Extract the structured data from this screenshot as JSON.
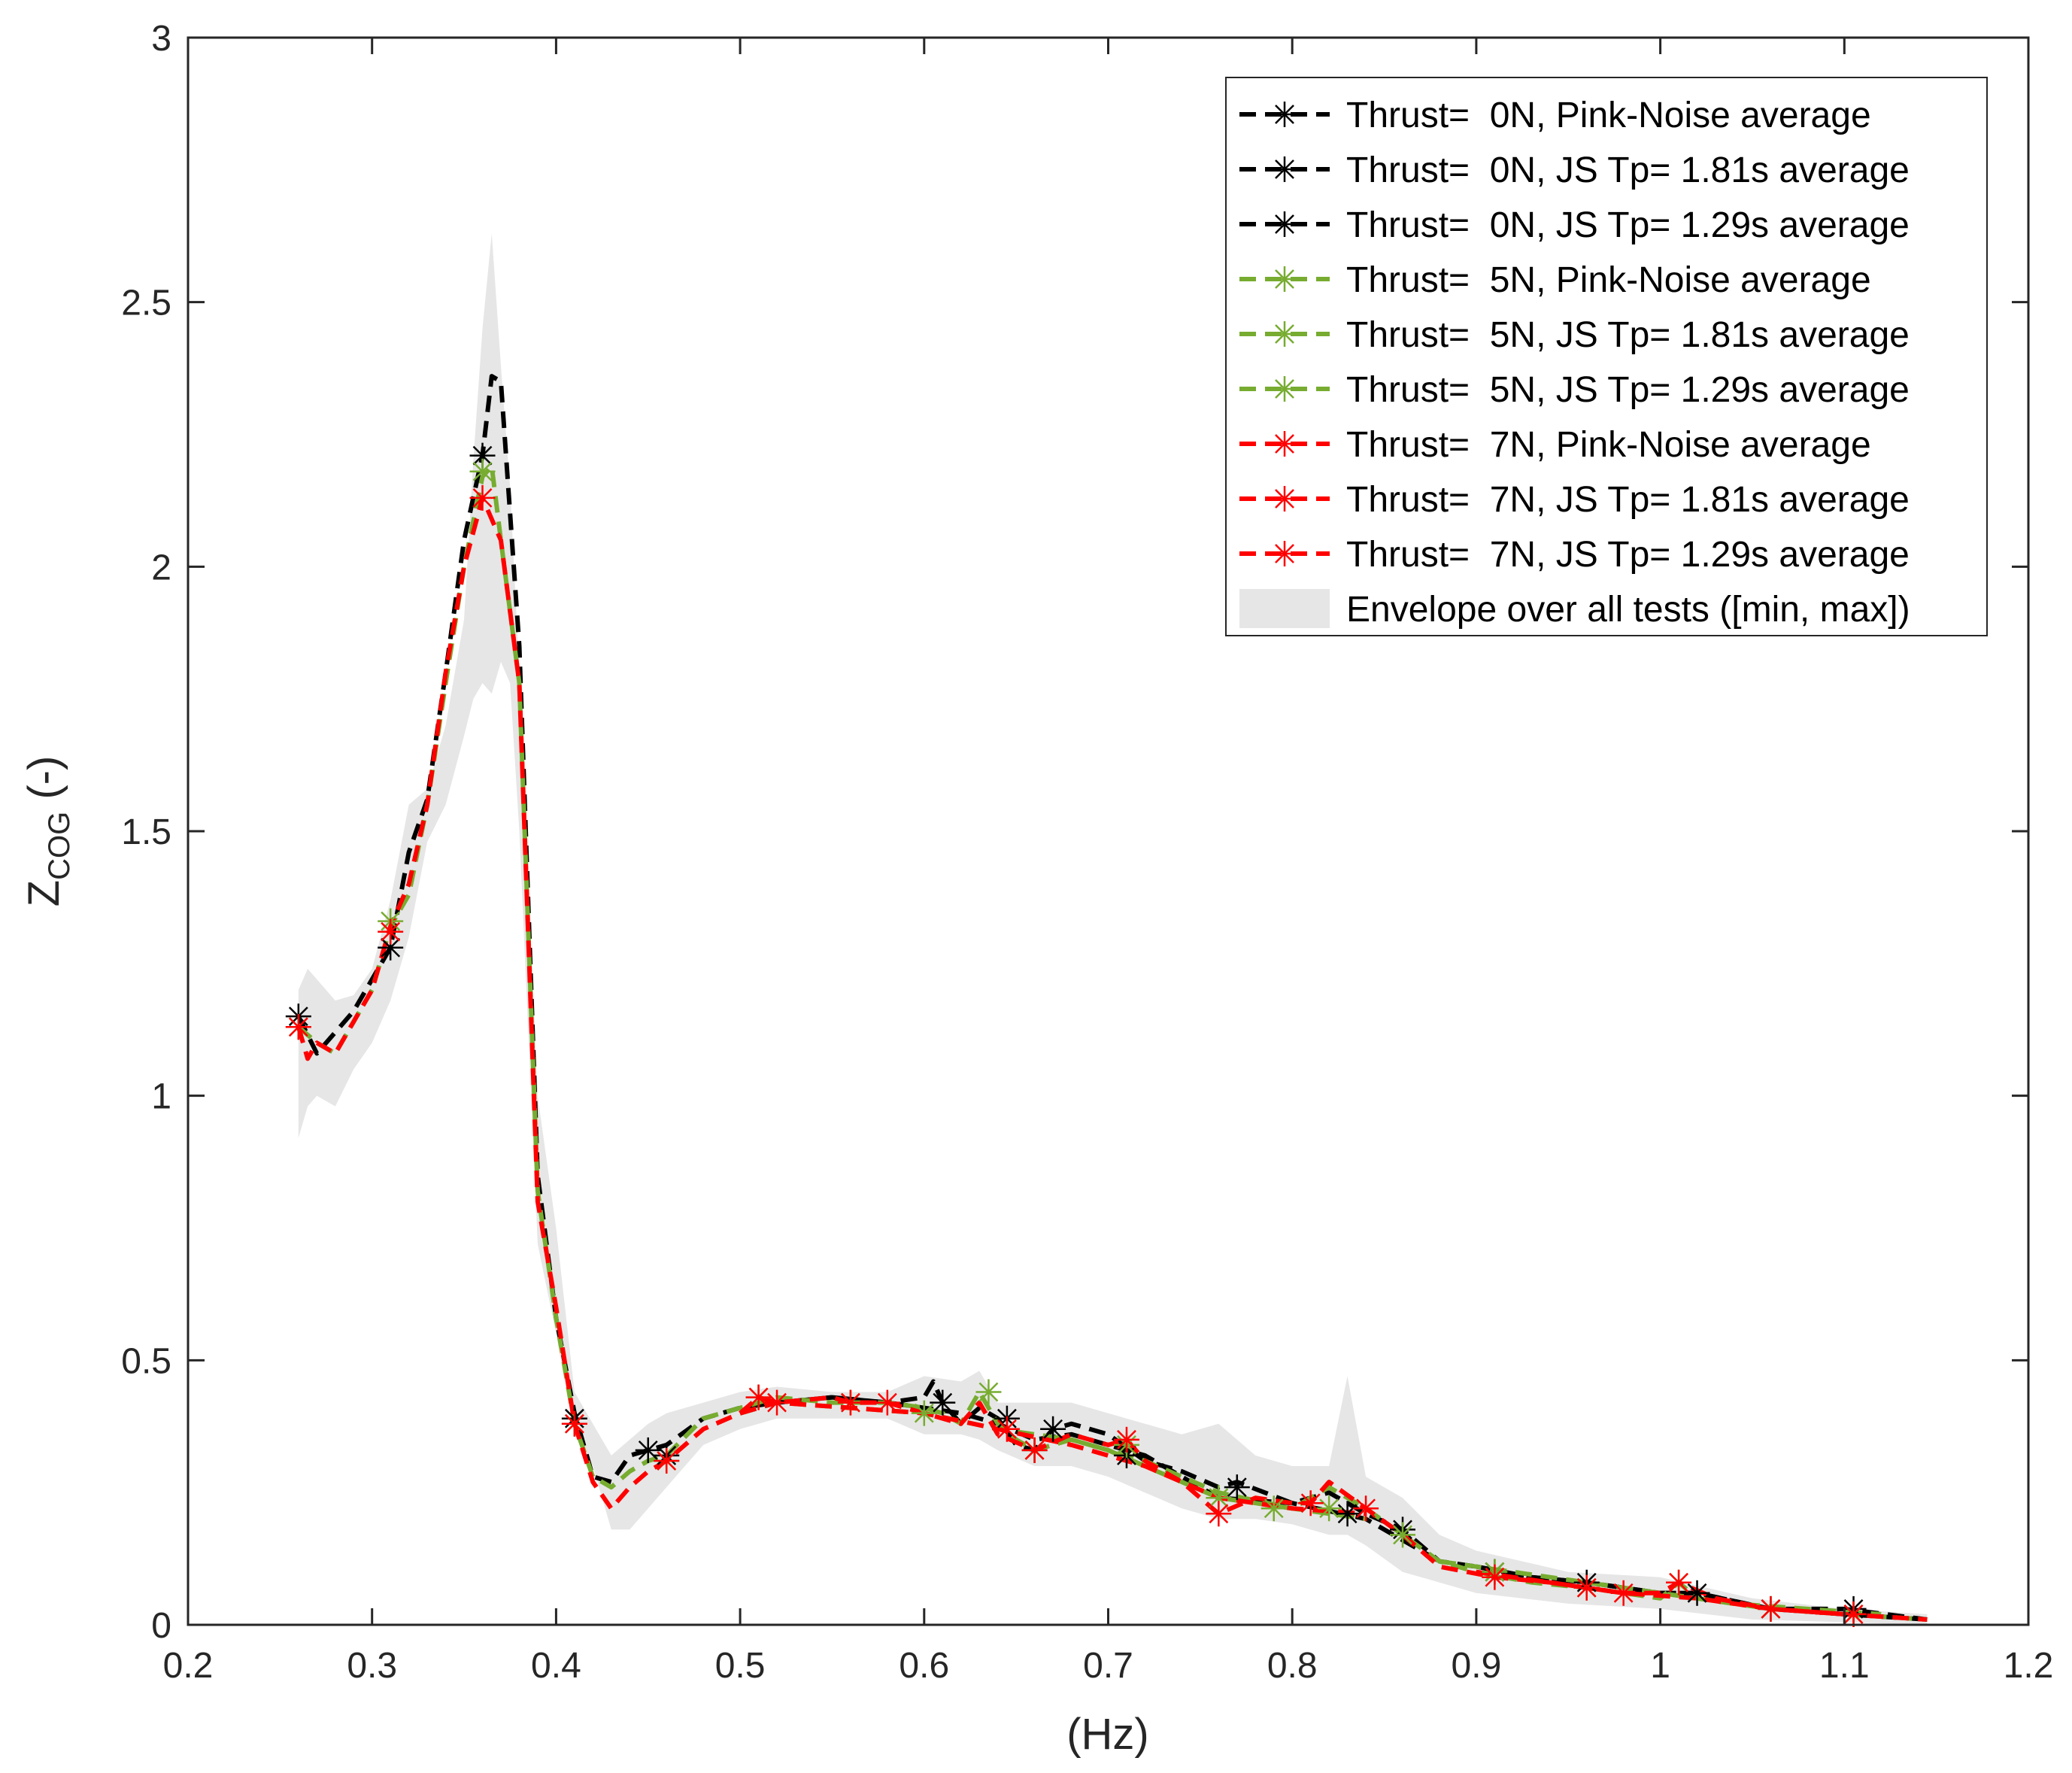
{
  "chart_data": {
    "type": "line",
    "title": "",
    "xlabel": "(Hz)",
    "ylabel": {
      "main": "Z",
      "subscript": "COG",
      "suffix": " (-)"
    },
    "xlim": [
      0.2,
      1.2
    ],
    "ylim": [
      0,
      3
    ],
    "xticks": [
      0.2,
      0.3,
      0.4,
      0.5,
      0.6,
      0.7,
      0.8,
      0.9,
      1,
      1.1,
      1.2
    ],
    "xtick_labels": [
      "0.2",
      "0.3",
      "0.4",
      "0.5",
      "0.6",
      "0.7",
      "0.8",
      "0.9",
      "1",
      "1.1",
      "1.2"
    ],
    "yticks": [
      0,
      0.5,
      1,
      1.5,
      2,
      2.5,
      3
    ],
    "ytick_labels": [
      "0",
      "0.5",
      "1",
      "1.5",
      "2",
      "2.5",
      "3"
    ],
    "legend_position": "top-right",
    "colors": {
      "thrust_0N": "#000000",
      "thrust_5N": "#77ac30",
      "thrust_7N": "#ff0000",
      "envelope": "#e6e6e6"
    },
    "envelope": {
      "name": "Envelope over all tests ([min, max])",
      "x": [
        0.26,
        0.265,
        0.27,
        0.28,
        0.29,
        0.3,
        0.31,
        0.32,
        0.33,
        0.34,
        0.35,
        0.355,
        0.36,
        0.365,
        0.37,
        0.375,
        0.38,
        0.39,
        0.4,
        0.41,
        0.42,
        0.43,
        0.44,
        0.45,
        0.46,
        0.48,
        0.5,
        0.52,
        0.55,
        0.58,
        0.6,
        0.62,
        0.63,
        0.64,
        0.66,
        0.68,
        0.7,
        0.72,
        0.74,
        0.76,
        0.78,
        0.8,
        0.82,
        0.83,
        0.84,
        0.86,
        0.88,
        0.9,
        0.95,
        1.0,
        1.05,
        1.1,
        1.145
      ],
      "upper": [
        1.2,
        1.24,
        1.22,
        1.18,
        1.19,
        1.24,
        1.37,
        1.55,
        1.58,
        1.7,
        1.9,
        2.2,
        2.45,
        2.63,
        2.38,
        2.15,
        1.8,
        1.0,
        0.75,
        0.44,
        0.38,
        0.32,
        0.35,
        0.38,
        0.4,
        0.42,
        0.44,
        0.45,
        0.44,
        0.44,
        0.47,
        0.46,
        0.48,
        0.42,
        0.42,
        0.42,
        0.4,
        0.38,
        0.36,
        0.38,
        0.32,
        0.3,
        0.3,
        0.47,
        0.28,
        0.24,
        0.17,
        0.14,
        0.1,
        0.09,
        0.05,
        0.03,
        0.02
      ],
      "lower": [
        0.92,
        0.98,
        1.0,
        0.98,
        1.05,
        1.1,
        1.18,
        1.3,
        1.48,
        1.55,
        1.68,
        1.75,
        1.78,
        1.76,
        1.82,
        1.78,
        1.5,
        0.72,
        0.55,
        0.36,
        0.3,
        0.18,
        0.18,
        0.22,
        0.26,
        0.34,
        0.37,
        0.39,
        0.39,
        0.39,
        0.36,
        0.36,
        0.35,
        0.33,
        0.3,
        0.3,
        0.28,
        0.25,
        0.22,
        0.2,
        0.2,
        0.19,
        0.17,
        0.17,
        0.15,
        0.1,
        0.08,
        0.06,
        0.04,
        0.03,
        0.01,
        0.005,
        0.0
      ]
    },
    "series": [
      {
        "name": "Thrust=  0N, Pink-Noise average",
        "color": "#000000",
        "dashed": true,
        "x": [
          0.26,
          0.27,
          0.28,
          0.29,
          0.3,
          0.31,
          0.32,
          0.33,
          0.34,
          0.35,
          0.36,
          0.365,
          0.37,
          0.38,
          0.39,
          0.4,
          0.41,
          0.42,
          0.43,
          0.44,
          0.45,
          0.46,
          0.48,
          0.5,
          0.52,
          0.55,
          0.58,
          0.6,
          0.605,
          0.61,
          0.62,
          0.63,
          0.64,
          0.65,
          0.66,
          0.67,
          0.68,
          0.7,
          0.72,
          0.74,
          0.76,
          0.77,
          0.8,
          0.82,
          0.84,
          0.86,
          0.88,
          0.9,
          0.93,
          0.96,
          1.0,
          1.02,
          1.06,
          1.1,
          1.145
        ],
        "y": [
          1.15,
          1.08,
          1.12,
          1.16,
          1.22,
          1.28,
          1.46,
          1.56,
          1.8,
          2.05,
          2.21,
          2.36,
          2.35,
          1.85,
          0.85,
          0.58,
          0.4,
          0.28,
          0.27,
          0.32,
          0.33,
          0.34,
          0.39,
          0.41,
          0.42,
          0.43,
          0.42,
          0.43,
          0.46,
          0.42,
          0.38,
          0.41,
          0.39,
          0.34,
          0.33,
          0.37,
          0.38,
          0.36,
          0.31,
          0.29,
          0.26,
          0.27,
          0.23,
          0.25,
          0.21,
          0.18,
          0.12,
          0.11,
          0.09,
          0.08,
          0.06,
          0.06,
          0.03,
          0.03,
          0.01
        ]
      },
      {
        "name": "Thrust=  0N, JS Tp= 1.81s average",
        "color": "#000000",
        "dashed": true,
        "x": [
          0.5,
          0.52,
          0.55,
          0.58,
          0.6,
          0.62,
          0.64,
          0.66,
          0.68,
          0.7,
          0.72,
          0.74,
          0.76,
          0.8,
          0.84,
          0.88
        ],
        "y": [
          0.4,
          0.42,
          0.43,
          0.42,
          0.41,
          0.4,
          0.38,
          0.35,
          0.36,
          0.34,
          0.32,
          0.28,
          0.24,
          0.23,
          0.2,
          0.12
        ]
      },
      {
        "name": "Thrust=  0N, JS Tp= 1.29s average",
        "color": "#000000",
        "dashed": true,
        "x": [
          0.9,
          0.93,
          0.96,
          1.0,
          1.02,
          1.06,
          1.1,
          1.145
        ],
        "y": [
          0.11,
          0.09,
          0.08,
          0.06,
          0.06,
          0.03,
          0.02,
          0.01
        ]
      },
      {
        "name": "Thrust=  5N, Pink-Noise average",
        "color": "#77ac30",
        "dashed": true,
        "x": [
          0.26,
          0.27,
          0.28,
          0.29,
          0.3,
          0.31,
          0.32,
          0.33,
          0.34,
          0.35,
          0.36,
          0.365,
          0.37,
          0.38,
          0.39,
          0.4,
          0.41,
          0.42,
          0.43,
          0.44,
          0.45,
          0.46,
          0.48,
          0.5,
          0.52,
          0.55,
          0.58,
          0.6,
          0.61,
          0.62,
          0.63,
          0.64,
          0.65,
          0.66,
          0.68,
          0.7,
          0.72,
          0.74,
          0.76,
          0.78,
          0.8,
          0.82,
          0.84,
          0.86,
          0.88,
          0.9,
          0.93,
          0.96,
          1.0,
          1.01,
          1.02,
          1.06,
          1.1,
          1.145
        ],
        "y": [
          1.13,
          1.1,
          1.08,
          1.14,
          1.2,
          1.32,
          1.38,
          1.55,
          1.78,
          2.0,
          2.17,
          2.19,
          2.05,
          1.78,
          0.82,
          0.58,
          0.38,
          0.28,
          0.26,
          0.29,
          0.31,
          0.32,
          0.39,
          0.41,
          0.43,
          0.42,
          0.42,
          0.41,
          0.4,
          0.38,
          0.44,
          0.38,
          0.35,
          0.33,
          0.35,
          0.33,
          0.3,
          0.27,
          0.24,
          0.23,
          0.22,
          0.26,
          0.22,
          0.17,
          0.12,
          0.1,
          0.08,
          0.07,
          0.05,
          0.08,
          0.05,
          0.03,
          0.02,
          0.01
        ]
      },
      {
        "name": "Thrust=  5N, JS Tp= 1.81s average",
        "color": "#77ac30",
        "dashed": true,
        "x": [
          0.5,
          0.52,
          0.56,
          0.6,
          0.64,
          0.68,
          0.72,
          0.76,
          0.8,
          0.84
        ],
        "y": [
          0.4,
          0.42,
          0.41,
          0.4,
          0.37,
          0.35,
          0.31,
          0.25,
          0.22,
          0.2
        ]
      },
      {
        "name": "Thrust=  5N, JS Tp= 1.29s average",
        "color": "#77ac30",
        "dashed": true,
        "x": [
          0.88,
          0.92,
          0.96,
          1.0,
          1.04,
          1.08,
          1.12
        ],
        "y": [
          0.12,
          0.1,
          0.08,
          0.06,
          0.04,
          0.03,
          0.02
        ]
      },
      {
        "name": "Thrust=  7N, Pink-Noise average",
        "color": "#ff0000",
        "dashed": true,
        "x": [
          0.26,
          0.265,
          0.27,
          0.28,
          0.29,
          0.3,
          0.31,
          0.32,
          0.33,
          0.34,
          0.35,
          0.36,
          0.37,
          0.38,
          0.39,
          0.4,
          0.41,
          0.42,
          0.43,
          0.44,
          0.45,
          0.46,
          0.48,
          0.5,
          0.51,
          0.52,
          0.55,
          0.56,
          0.58,
          0.6,
          0.62,
          0.63,
          0.64,
          0.66,
          0.68,
          0.7,
          0.71,
          0.72,
          0.74,
          0.76,
          0.78,
          0.8,
          0.81,
          0.82,
          0.84,
          0.86,
          0.88,
          0.91,
          0.94,
          0.96,
          0.98,
          1.0,
          1.01,
          1.03,
          1.06,
          1.1,
          1.145
        ],
        "y": [
          1.13,
          1.07,
          1.1,
          1.08,
          1.14,
          1.2,
          1.32,
          1.4,
          1.55,
          1.8,
          2.0,
          2.13,
          2.05,
          1.78,
          0.8,
          0.6,
          0.38,
          0.27,
          0.22,
          0.26,
          0.29,
          0.31,
          0.37,
          0.4,
          0.43,
          0.42,
          0.43,
          0.42,
          0.42,
          0.4,
          0.38,
          0.42,
          0.36,
          0.33,
          0.36,
          0.34,
          0.35,
          0.31,
          0.27,
          0.21,
          0.24,
          0.23,
          0.23,
          0.27,
          0.22,
          0.17,
          0.11,
          0.09,
          0.08,
          0.07,
          0.06,
          0.06,
          0.08,
          0.05,
          0.03,
          0.02,
          0.01
        ]
      },
      {
        "name": "Thrust=  7N, JS Tp= 1.81s average",
        "color": "#ff0000",
        "dashed": true,
        "x": [
          0.5,
          0.52,
          0.56,
          0.6,
          0.64,
          0.68,
          0.72,
          0.76,
          0.8,
          0.84
        ],
        "y": [
          0.4,
          0.42,
          0.41,
          0.4,
          0.37,
          0.34,
          0.3,
          0.24,
          0.22,
          0.21
        ]
      },
      {
        "name": "Thrust=  7N, JS Tp= 1.29s average",
        "color": "#ff0000",
        "dashed": true,
        "x": [
          0.9,
          0.94,
          0.98,
          1.02,
          1.06,
          1.1
        ],
        "y": [
          0.1,
          0.08,
          0.06,
          0.05,
          0.03,
          0.02
        ]
      }
    ],
    "markers": [
      {
        "color": "#000000",
        "points": [
          [
            0.26,
            1.15
          ],
          [
            0.31,
            1.28
          ],
          [
            0.36,
            2.21
          ],
          [
            0.41,
            0.39
          ],
          [
            0.45,
            0.33
          ],
          [
            0.46,
            0.32
          ],
          [
            0.61,
            0.42
          ],
          [
            0.645,
            0.39
          ],
          [
            0.66,
            0.33
          ],
          [
            0.67,
            0.37
          ],
          [
            0.71,
            0.32
          ],
          [
            0.77,
            0.26
          ],
          [
            0.83,
            0.21
          ],
          [
            0.86,
            0.18
          ],
          [
            0.91,
            0.1
          ],
          [
            0.96,
            0.08
          ],
          [
            1.02,
            0.06
          ],
          [
            1.06,
            0.03
          ],
          [
            1.105,
            0.03
          ]
        ]
      },
      {
        "color": "#77ac30",
        "points": [
          [
            0.26,
            1.13
          ],
          [
            0.31,
            1.33
          ],
          [
            0.36,
            2.18
          ],
          [
            0.41,
            0.38
          ],
          [
            0.46,
            0.31
          ],
          [
            0.51,
            0.43
          ],
          [
            0.56,
            0.42
          ],
          [
            0.6,
            0.4
          ],
          [
            0.635,
            0.44
          ],
          [
            0.66,
            0.33
          ],
          [
            0.71,
            0.34
          ],
          [
            0.76,
            0.24
          ],
          [
            0.79,
            0.22
          ],
          [
            0.82,
            0.22
          ],
          [
            0.86,
            0.17
          ],
          [
            0.91,
            0.1
          ],
          [
            0.96,
            0.07
          ],
          [
            1.01,
            0.08
          ],
          [
            1.06,
            0.03
          ],
          [
            1.105,
            0.02
          ]
        ]
      },
      {
        "color": "#ff0000",
        "points": [
          [
            0.26,
            1.13
          ],
          [
            0.31,
            1.31
          ],
          [
            0.36,
            2.13
          ],
          [
            0.41,
            0.38
          ],
          [
            0.46,
            0.31
          ],
          [
            0.51,
            0.43
          ],
          [
            0.52,
            0.42
          ],
          [
            0.56,
            0.42
          ],
          [
            0.58,
            0.42
          ],
          [
            0.645,
            0.37
          ],
          [
            0.66,
            0.33
          ],
          [
            0.71,
            0.35
          ],
          [
            0.76,
            0.21
          ],
          [
            0.81,
            0.23
          ],
          [
            0.84,
            0.22
          ],
          [
            0.91,
            0.09
          ],
          [
            0.96,
            0.07
          ],
          [
            0.98,
            0.06
          ],
          [
            1.01,
            0.08
          ],
          [
            1.06,
            0.03
          ],
          [
            1.105,
            0.02
          ]
        ]
      }
    ]
  }
}
